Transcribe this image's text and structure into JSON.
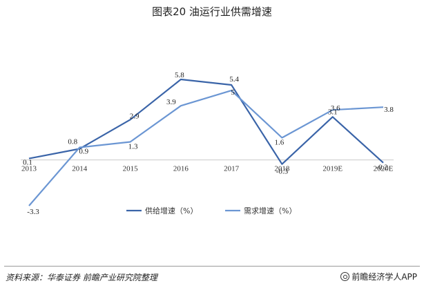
{
  "chart_data": {
    "type": "line",
    "title": "图表20 油运行业供需增速",
    "categories": [
      "2013",
      "2014",
      "2015",
      "2016",
      "2017",
      "2018",
      "2019E",
      "2020E"
    ],
    "series": [
      {
        "name": "供给增速（%）",
        "values": [
          0.1,
          0.8,
          2.9,
          5.8,
          5.4,
          -0.3,
          3.1,
          -0.2
        ],
        "labels": [
          "0.1",
          "0.8",
          "2.9",
          "5.8",
          "5.4",
          "-0.3",
          "3.1",
          "-0.2"
        ],
        "color": "#3a64a8"
      },
      {
        "name": "需求增速（%）",
        "values": [
          -3.3,
          0.9,
          1.3,
          3.9,
          5,
          1.6,
          3.6,
          3.8
        ],
        "labels": [
          "-3.3",
          "0.9",
          "1.3",
          "3.9",
          "5",
          "1.6",
          "3.6",
          "3.8"
        ],
        "color": "#6b96d3"
      }
    ],
    "ylim": [
      -3.3,
      5.8
    ],
    "grid": false,
    "legend": "bottom"
  },
  "footer": {
    "source": "资料来源：华泰证券 前瞻产业研究院整理",
    "brand": "前瞻经济学人APP"
  }
}
